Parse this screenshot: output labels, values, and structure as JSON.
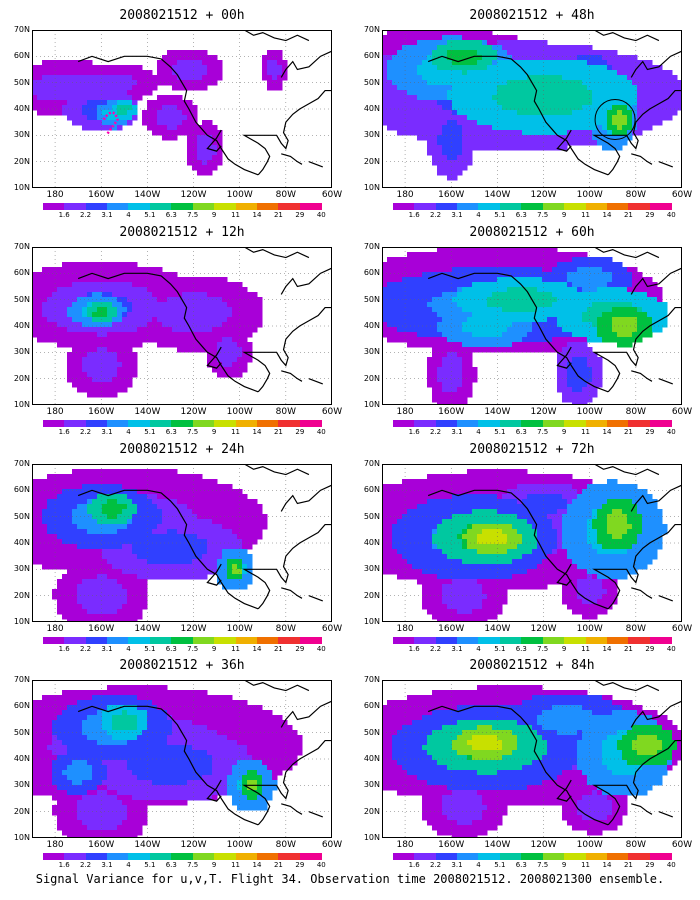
{
  "figure": {
    "footer": "Signal Variance for u,v,T. Flight 34. Observation time 2008021512. 2008021300 ensemble.",
    "lat_labels": [
      "70N",
      "60N",
      "50N",
      "40N",
      "30N",
      "20N",
      "10N"
    ],
    "lon_labels": [
      "180",
      "160W",
      "140W",
      "120W",
      "100W",
      "80W",
      "60W"
    ],
    "colorbar": {
      "labels": [
        "1.6",
        "2.2",
        "3.1",
        "4",
        "5.1",
        "6.3",
        "7.5",
        "9",
        "11",
        "14",
        "21",
        "29",
        "40"
      ],
      "colors": [
        "#a800d8",
        "#7a2cff",
        "#3040ff",
        "#1e90ff",
        "#00c0e8",
        "#00c8a0",
        "#00c040",
        "#80d820",
        "#c8e000",
        "#f0b000",
        "#f07000",
        "#f03030",
        "#f00090"
      ]
    },
    "panels": [
      {
        "id": "p00",
        "title": "2008021512 + 00h",
        "forecast_hour": 0
      },
      {
        "id": "p48",
        "title": "2008021512 + 48h",
        "forecast_hour": 48
      },
      {
        "id": "p12",
        "title": "2008021512 + 12h",
        "forecast_hour": 12
      },
      {
        "id": "p60",
        "title": "2008021512 + 60h",
        "forecast_hour": 60
      },
      {
        "id": "p24",
        "title": "2008021512 + 24h",
        "forecast_hour": 24
      },
      {
        "id": "p72",
        "title": "2008021512 + 72h",
        "forecast_hour": 72
      },
      {
        "id": "p36",
        "title": "2008021512 + 36h",
        "forecast_hour": 36
      },
      {
        "id": "p84",
        "title": "2008021512 + 84h",
        "forecast_hour": 84
      }
    ]
  }
}
